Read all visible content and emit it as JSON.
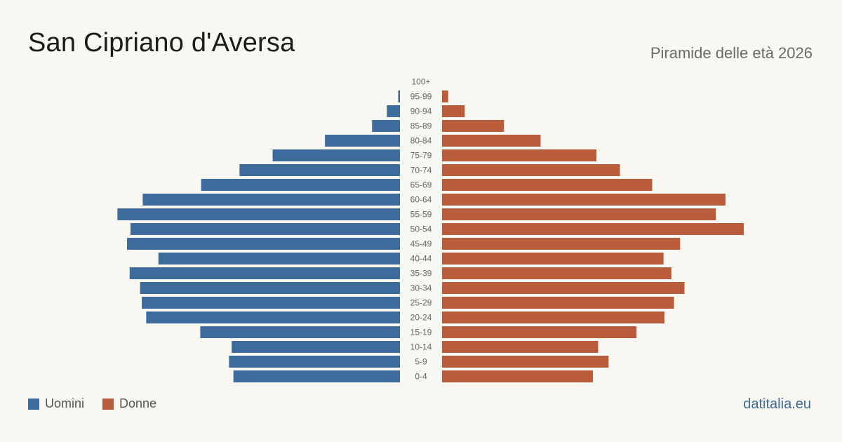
{
  "header": {
    "title": "San Cipriano d'Aversa",
    "subtitle": "Piramide delle età 2026"
  },
  "legend": {
    "men_label": "Uomini",
    "women_label": "Donne"
  },
  "brand": "datitalia.eu",
  "colors": {
    "men": "#3d6b9c",
    "women": "#b85c3c",
    "background": "#f9f7f2",
    "label": "#666666"
  },
  "chart_data": {
    "type": "bar",
    "orientation": "horizontal-pyramid",
    "categories": [
      "100+",
      "95-99",
      "90-94",
      "85-89",
      "80-84",
      "75-79",
      "70-74",
      "65-69",
      "60-64",
      "55-59",
      "50-54",
      "45-49",
      "40-44",
      "35-39",
      "30-34",
      "25-29",
      "20-24",
      "15-19",
      "10-14",
      "5-9",
      "0-4"
    ],
    "series": [
      {
        "name": "Uomini",
        "values": [
          0,
          2,
          15,
          32,
          86,
          146,
          184,
          228,
          295,
          324,
          309,
          313,
          277,
          310,
          298,
          296,
          291,
          229,
          193,
          196,
          191
        ]
      },
      {
        "name": "Donne",
        "values": [
          0,
          7,
          26,
          71,
          113,
          177,
          204,
          241,
          325,
          314,
          346,
          273,
          254,
          263,
          278,
          266,
          255,
          223,
          179,
          191,
          173
        ]
      }
    ],
    "xlim": [
      0,
      346
    ],
    "legend_position": "bottom-left"
  }
}
